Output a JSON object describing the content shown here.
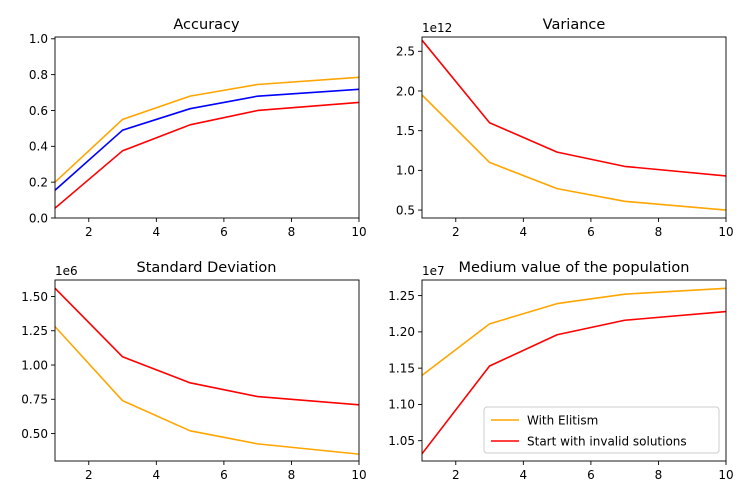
{
  "chart_data": [
    {
      "type": "line",
      "title": "Accuracy",
      "xlabel": "",
      "ylabel": "",
      "xlim": [
        1,
        10
      ],
      "ylim": [
        0,
        1.01
      ],
      "xticks": [
        2,
        4,
        6,
        8,
        10
      ],
      "yticks": [
        0.0,
        0.2,
        0.4,
        0.6,
        0.8,
        1.0
      ],
      "ytick_labels": [
        "0.0",
        "0.2",
        "0.4",
        "0.6",
        "0.8",
        "1.0"
      ],
      "offset_text": "",
      "x": [
        1,
        3,
        5,
        7,
        10
      ],
      "series": [
        {
          "color": "#ffa500",
          "values": [
            0.2,
            0.55,
            0.68,
            0.745,
            0.785
          ]
        },
        {
          "color": "#0000ff",
          "values": [
            0.155,
            0.49,
            0.61,
            0.68,
            0.718
          ]
        },
        {
          "color": "#ff0000",
          "values": [
            0.055,
            0.375,
            0.52,
            0.6,
            0.645
          ]
        }
      ]
    },
    {
      "type": "line",
      "title": "Variance",
      "xlabel": "",
      "ylabel": "",
      "xlim": [
        1,
        10
      ],
      "ylim": [
        0.4,
        2.68
      ],
      "xticks": [
        2,
        4,
        6,
        8,
        10
      ],
      "yticks": [
        0.5,
        1.0,
        1.5,
        2.0,
        2.5
      ],
      "ytick_labels": [
        "0.5",
        "1.0",
        "1.5",
        "2.0",
        "2.5"
      ],
      "offset_text": "1e12",
      "x": [
        1,
        3,
        5,
        7,
        10
      ],
      "series": [
        {
          "color": "#ffa500",
          "values": [
            1.95,
            1.1,
            0.77,
            0.61,
            0.5
          ]
        },
        {
          "color": "#ff0000",
          "values": [
            2.64,
            1.6,
            1.23,
            1.05,
            0.93
          ]
        }
      ]
    },
    {
      "type": "line",
      "title": "Standard Deviation",
      "xlabel": "",
      "ylabel": "",
      "xlim": [
        1,
        10
      ],
      "ylim": [
        0.3,
        1.62
      ],
      "xticks": [
        2,
        4,
        6,
        8,
        10
      ],
      "yticks": [
        0.5,
        0.75,
        1.0,
        1.25,
        1.5
      ],
      "ytick_labels": [
        "0.50",
        "0.75",
        "1.00",
        "1.25",
        "1.50"
      ],
      "offset_text": "1e6",
      "x": [
        1,
        3,
        5,
        7,
        10
      ],
      "series": [
        {
          "color": "#ffa500",
          "values": [
            1.28,
            0.74,
            0.52,
            0.425,
            0.35
          ]
        },
        {
          "color": "#ff0000",
          "values": [
            1.56,
            1.06,
            0.87,
            0.77,
            0.71
          ]
        }
      ]
    },
    {
      "type": "line",
      "title": "Medium value of the population",
      "xlabel": "",
      "ylabel": "",
      "xlim": [
        1,
        10
      ],
      "ylim": [
        1.022,
        1.2715
      ],
      "xticks": [
        2,
        4,
        6,
        8,
        10
      ],
      "yticks": [
        1.05,
        1.1,
        1.15,
        1.2,
        1.25
      ],
      "ytick_labels": [
        "1.05",
        "1.10",
        "1.15",
        "1.20",
        "1.25"
      ],
      "offset_text": "1e7",
      "x": [
        1,
        3,
        5,
        7,
        10
      ],
      "series": [
        {
          "color": "#ffa500",
          "name": "With Elitism",
          "values": [
            1.14,
            1.211,
            1.239,
            1.252,
            1.26
          ]
        },
        {
          "color": "#ff0000",
          "name": "Start with invalid solutions",
          "values": [
            1.032,
            1.153,
            1.196,
            1.216,
            1.228
          ]
        }
      ],
      "legend": "lower right"
    }
  ]
}
